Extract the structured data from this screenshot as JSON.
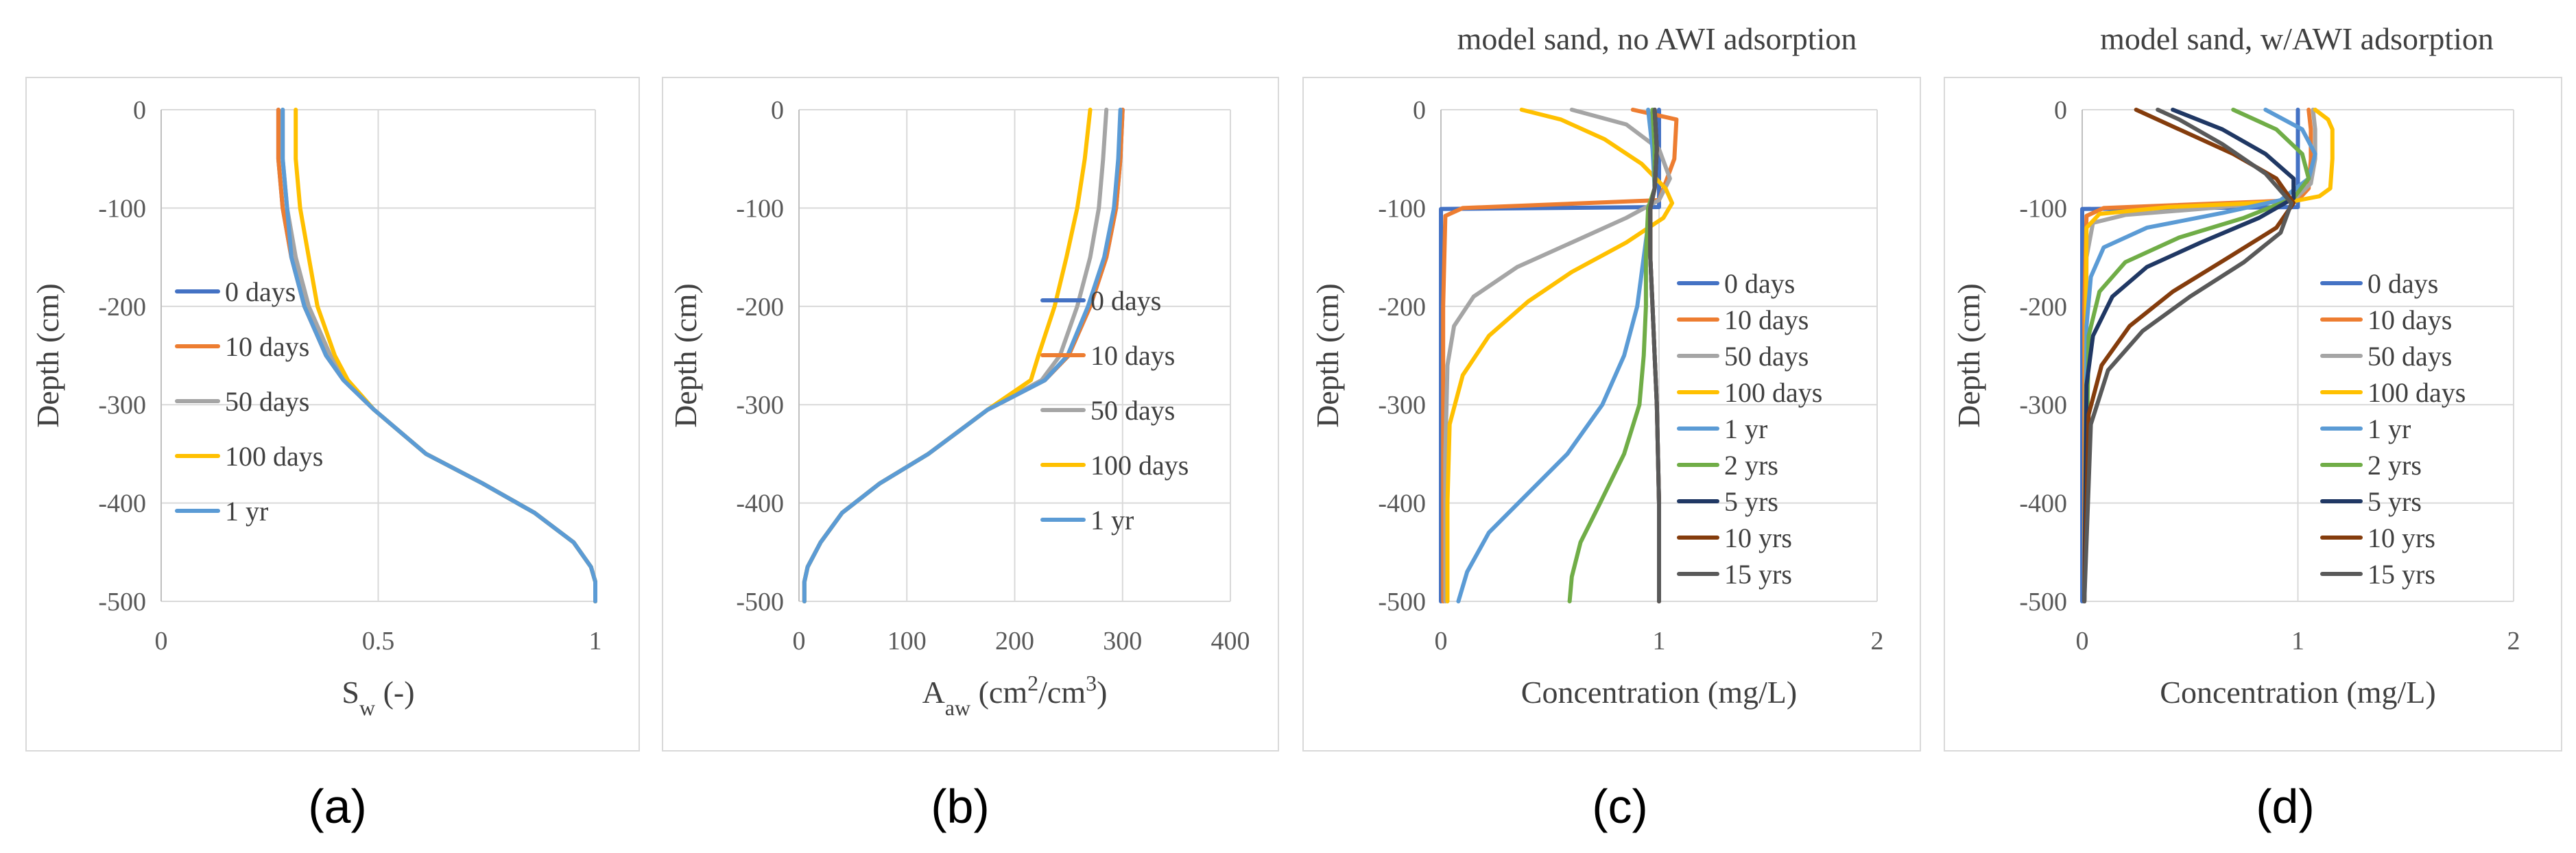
{
  "chart_data": [
    {
      "type": "line",
      "panel_label": "(a)",
      "title": "",
      "xlabel_main": "S",
      "xlabel_sub": "w",
      "xlabel_rest": " (-)",
      "ylabel": "Depth (cm)",
      "xlim": [
        0,
        1
      ],
      "ylim": [
        -500,
        0
      ],
      "xticks": [
        "0",
        "0.5",
        "1"
      ],
      "yticks": [
        "0",
        "-100",
        "-200",
        "-300",
        "-400",
        "-500"
      ],
      "colors": {
        "s0": "#4472C4",
        "s1": "#ED7D31",
        "s2": "#A5A5A5",
        "s3": "#FFC000",
        "s4": "#5B9BD5"
      },
      "series": [
        {
          "name": "0 days",
          "color": "#4472C4",
          "x": [
            0.27,
            0.27,
            0.28,
            0.3,
            0.33,
            0.38,
            0.42,
            0.49,
            0.61,
            0.74,
            0.86,
            0.95,
            0.99,
            1.0,
            1.0
          ],
          "y": [
            0,
            -50,
            -100,
            -150,
            -200,
            -250,
            -275,
            -305,
            -350,
            -380,
            -410,
            -440,
            -465,
            -480,
            -500
          ]
        },
        {
          "name": "10 days",
          "color": "#ED7D31",
          "x": [
            0.27,
            0.27,
            0.28,
            0.3,
            0.33,
            0.38,
            0.42,
            0.49,
            0.61,
            0.74,
            0.86,
            0.95,
            0.99,
            1.0,
            1.0
          ],
          "y": [
            0,
            -50,
            -100,
            -150,
            -200,
            -250,
            -275,
            -305,
            -350,
            -380,
            -410,
            -440,
            -465,
            -480,
            -500
          ]
        },
        {
          "name": "50 days",
          "color": "#A5A5A5",
          "x": [
            0.28,
            0.28,
            0.29,
            0.31,
            0.34,
            0.39,
            0.42,
            0.49,
            0.61,
            0.74,
            0.86,
            0.95,
            0.99,
            1.0,
            1.0
          ],
          "y": [
            0,
            -50,
            -100,
            -150,
            -200,
            -250,
            -275,
            -305,
            -350,
            -380,
            -410,
            -440,
            -465,
            -480,
            -500
          ]
        },
        {
          "name": "100 days",
          "color": "#FFC000",
          "x": [
            0.31,
            0.31,
            0.32,
            0.34,
            0.36,
            0.4,
            0.43,
            0.49,
            0.61,
            0.74,
            0.86,
            0.95,
            0.99,
            1.0,
            1.0
          ],
          "y": [
            0,
            -50,
            -100,
            -150,
            -200,
            -250,
            -275,
            -305,
            -350,
            -380,
            -410,
            -440,
            -465,
            -480,
            -500
          ]
        },
        {
          "name": "1 yr",
          "color": "#5B9BD5",
          "x": [
            0.28,
            0.28,
            0.29,
            0.3,
            0.33,
            0.38,
            0.42,
            0.49,
            0.61,
            0.74,
            0.86,
            0.95,
            0.99,
            1.0,
            1.0
          ],
          "y": [
            0,
            -50,
            -100,
            -150,
            -200,
            -250,
            -275,
            -305,
            -350,
            -380,
            -410,
            -440,
            -465,
            -480,
            -500
          ]
        }
      ],
      "legend_position": "left-middle"
    },
    {
      "type": "line",
      "panel_label": "(b)",
      "title": "",
      "xlabel_main": "A",
      "xlabel_sub": "aw",
      "xlabel_rest": " (cm",
      "xlabel_sup1": "2",
      "xlabel_mid": "/cm",
      "xlabel_sup2": "3",
      "xlabel_end": ")",
      "ylabel": "Depth (cm)",
      "xlim": [
        0,
        400
      ],
      "ylim": [
        -500,
        0
      ],
      "xticks": [
        "0",
        "100",
        "200",
        "300",
        "400"
      ],
      "yticks": [
        "0",
        "-100",
        "-200",
        "-300",
        "-400",
        "-500"
      ],
      "series": [
        {
          "name": "0 days",
          "color": "#4472C4",
          "x": [
            300,
            298,
            294,
            285,
            270,
            250,
            228,
            175,
            120,
            75,
            40,
            20,
            8,
            5,
            5
          ],
          "y": [
            0,
            -50,
            -100,
            -150,
            -200,
            -250,
            -275,
            -305,
            -350,
            -380,
            -410,
            -440,
            -465,
            -480,
            -500
          ]
        },
        {
          "name": "10 days",
          "color": "#ED7D31",
          "x": [
            300,
            298,
            294,
            285,
            270,
            250,
            228,
            175,
            120,
            75,
            40,
            20,
            8,
            5,
            5
          ],
          "y": [
            0,
            -50,
            -100,
            -150,
            -200,
            -250,
            -275,
            -305,
            -350,
            -380,
            -410,
            -440,
            -465,
            -480,
            -500
          ]
        },
        {
          "name": "50 days",
          "color": "#A5A5A5",
          "x": [
            285,
            282,
            278,
            270,
            258,
            242,
            225,
            175,
            120,
            75,
            40,
            20,
            8,
            5,
            5
          ],
          "y": [
            0,
            -50,
            -100,
            -150,
            -200,
            -250,
            -275,
            -305,
            -350,
            -380,
            -410,
            -440,
            -465,
            -480,
            -500
          ]
        },
        {
          "name": "100 days",
          "color": "#FFC000",
          "x": [
            270,
            265,
            258,
            248,
            237,
            222,
            215,
            175,
            120,
            75,
            40,
            20,
            8,
            5,
            5
          ],
          "y": [
            0,
            -50,
            -100,
            -150,
            -200,
            -250,
            -275,
            -305,
            -350,
            -380,
            -410,
            -440,
            -465,
            -480,
            -500
          ]
        },
        {
          "name": "1 yr",
          "color": "#5B9BD5",
          "x": [
            298,
            296,
            292,
            283,
            268,
            249,
            228,
            175,
            120,
            75,
            40,
            20,
            8,
            5,
            5
          ],
          "y": [
            0,
            -50,
            -100,
            -150,
            -200,
            -250,
            -275,
            -305,
            -350,
            -380,
            -410,
            -440,
            -465,
            -480,
            -500
          ]
        }
      ],
      "legend_position": "right-middle"
    },
    {
      "type": "line",
      "panel_label": "(c)",
      "title": "model sand, no AWI adsorption",
      "xlabel_main": "Concentration (mg/L)",
      "ylabel": "Depth (cm)",
      "xlim": [
        0,
        2
      ],
      "ylim": [
        -500,
        0
      ],
      "xticks": [
        "0",
        "1",
        "2"
      ],
      "yticks": [
        "0",
        "-100",
        "-200",
        "-300",
        "-400",
        "-500"
      ],
      "series": [
        {
          "name": "0 days",
          "color": "#4472C4",
          "x": [
            1.0,
            1.0,
            1.0,
            0.0,
            0.0,
            0.0
          ],
          "y": [
            0,
            -80,
            -99,
            -101,
            -250,
            -500
          ]
        },
        {
          "name": "10 days",
          "color": "#ED7D31",
          "x": [
            0.88,
            1.08,
            1.07,
            1.0,
            0.1,
            0.02,
            0.01,
            0.01
          ],
          "y": [
            0,
            -10,
            -50,
            -92,
            -100,
            -108,
            -200,
            -500
          ]
        },
        {
          "name": "50 days",
          "color": "#A5A5A5",
          "x": [
            0.6,
            0.85,
            1.0,
            1.05,
            1.0,
            0.85,
            0.6,
            0.35,
            0.15,
            0.06,
            0.03,
            0.02,
            0.02
          ],
          "y": [
            0,
            -15,
            -40,
            -70,
            -92,
            -110,
            -135,
            -160,
            -190,
            -220,
            -260,
            -350,
            -500
          ]
        },
        {
          "name": "100 days",
          "color": "#FFC000",
          "x": [
            0.37,
            0.55,
            0.75,
            0.92,
            1.03,
            1.06,
            1.02,
            0.85,
            0.6,
            0.4,
            0.22,
            0.1,
            0.04,
            0.03,
            0.03
          ],
          "y": [
            0,
            -10,
            -30,
            -55,
            -80,
            -95,
            -110,
            -135,
            -165,
            -195,
            -230,
            -270,
            -320,
            -400,
            -500
          ]
        },
        {
          "name": "1 yr",
          "color": "#5B9BD5",
          "x": [
            0.95,
            0.97,
            0.98,
            0.96,
            0.93,
            0.9,
            0.84,
            0.74,
            0.58,
            0.4,
            0.22,
            0.12,
            0.08
          ],
          "y": [
            0,
            -40,
            -80,
            -100,
            -150,
            -200,
            -250,
            -300,
            -350,
            -390,
            -430,
            -470,
            -500
          ]
        },
        {
          "name": "2 yrs",
          "color": "#70AD47",
          "x": [
            0.97,
            0.98,
            0.98,
            0.95,
            0.94,
            0.94,
            0.93,
            0.91,
            0.84,
            0.73,
            0.64,
            0.6,
            0.59
          ],
          "y": [
            0,
            -40,
            -80,
            -100,
            -150,
            -200,
            -250,
            -300,
            -350,
            -400,
            -440,
            -475,
            -500
          ]
        },
        {
          "name": "5 yrs",
          "color": "#203864",
          "x": [
            0.98,
            0.99,
            0.98,
            0.96,
            0.96,
            0.97,
            0.98,
            0.99,
            1.0,
            1.0
          ],
          "y": [
            0,
            -40,
            -80,
            -100,
            -150,
            -200,
            -250,
            -300,
            -400,
            -500
          ]
        },
        {
          "name": "10 yrs",
          "color": "#843C0C",
          "x": [
            0.98,
            0.99,
            0.98,
            0.96,
            0.96,
            0.97,
            0.98,
            0.99,
            1.0,
            1.0
          ],
          "y": [
            0,
            -40,
            -80,
            -100,
            -150,
            -200,
            -250,
            -300,
            -400,
            -500
          ]
        },
        {
          "name": "15 yrs",
          "color": "#595959",
          "x": [
            0.98,
            0.99,
            0.98,
            0.96,
            0.96,
            0.97,
            0.98,
            0.99,
            1.0,
            1.0
          ],
          "y": [
            0,
            -40,
            -80,
            -100,
            -150,
            -200,
            -250,
            -300,
            -400,
            -500
          ]
        }
      ],
      "legend_position": "right-middle"
    },
    {
      "type": "line",
      "panel_label": "(d)",
      "title": "model sand, w/AWI adsorption",
      "xlabel_main": "Concentration (mg/L)",
      "ylabel": "Depth (cm)",
      "xlim": [
        0,
        2
      ],
      "ylim": [
        -500,
        0
      ],
      "xticks": [
        "0",
        "1",
        "2"
      ],
      "yticks": [
        "0",
        "-100",
        "-200",
        "-300",
        "-400",
        "-500"
      ],
      "series": [
        {
          "name": "0 days",
          "color": "#4472C4",
          "x": [
            1.0,
            1.0,
            1.0,
            0.0,
            0.0,
            0.0
          ],
          "y": [
            0,
            -80,
            -99,
            -101,
            -250,
            -500
          ]
        },
        {
          "name": "10 days",
          "color": "#ED7D31",
          "x": [
            1.05,
            1.06,
            1.06,
            1.05,
            1.0,
            0.1,
            0.02,
            0.01,
            0.01
          ],
          "y": [
            0,
            -20,
            -50,
            -80,
            -92,
            -100,
            -108,
            -200,
            -500
          ]
        },
        {
          "name": "50 days",
          "color": "#A5A5A5",
          "x": [
            1.07,
            1.08,
            1.08,
            1.06,
            0.98,
            0.6,
            0.2,
            0.05,
            0.02,
            0.01
          ],
          "y": [
            0,
            -20,
            -50,
            -75,
            -92,
            -100,
            -107,
            -115,
            -150,
            -500
          ]
        },
        {
          "name": "100 days",
          "color": "#FFC000",
          "x": [
            1.08,
            1.14,
            1.16,
            1.16,
            1.15,
            1.1,
            0.98,
            0.4,
            0.08,
            0.02,
            0.01
          ],
          "y": [
            0,
            -10,
            -20,
            -50,
            -80,
            -88,
            -93,
            -99,
            -106,
            -120,
            -500
          ]
        },
        {
          "name": "1 yr",
          "color": "#5B9BD5",
          "x": [
            0.85,
            1.02,
            1.08,
            1.05,
            0.92,
            0.65,
            0.3,
            0.1,
            0.04,
            0.02,
            0.01
          ],
          "y": [
            0,
            -20,
            -45,
            -70,
            -92,
            -105,
            -120,
            -140,
            -170,
            -220,
            -500
          ]
        },
        {
          "name": "2 yrs",
          "color": "#70AD47",
          "x": [
            0.7,
            0.9,
            1.02,
            1.05,
            0.98,
            0.75,
            0.45,
            0.2,
            0.08,
            0.03,
            0.01
          ],
          "y": [
            0,
            -20,
            -45,
            -70,
            -90,
            -110,
            -130,
            -155,
            -185,
            -230,
            -500
          ]
        },
        {
          "name": "5 yrs",
          "color": "#203864",
          "x": [
            0.42,
            0.65,
            0.85,
            0.98,
            0.98,
            0.82,
            0.55,
            0.3,
            0.14,
            0.05,
            0.02,
            0.01
          ],
          "y": [
            0,
            -20,
            -45,
            -70,
            -90,
            -110,
            -135,
            -160,
            -190,
            -230,
            -280,
            -500
          ]
        },
        {
          "name": "10 yrs",
          "color": "#843C0C",
          "x": [
            0.25,
            0.45,
            0.7,
            0.9,
            0.98,
            0.9,
            0.68,
            0.42,
            0.22,
            0.09,
            0.03,
            0.01
          ],
          "y": [
            0,
            -20,
            -45,
            -70,
            -95,
            -120,
            -150,
            -185,
            -220,
            -260,
            -310,
            -500
          ]
        },
        {
          "name": "15 yrs",
          "color": "#595959",
          "x": [
            0.35,
            0.45,
            0.65,
            0.85,
            0.97,
            0.92,
            0.75,
            0.5,
            0.28,
            0.12,
            0.04,
            0.01
          ],
          "y": [
            0,
            -10,
            -35,
            -65,
            -95,
            -125,
            -155,
            -190,
            -225,
            -265,
            -320,
            -500
          ]
        }
      ],
      "legend_position": "right-middle"
    }
  ]
}
